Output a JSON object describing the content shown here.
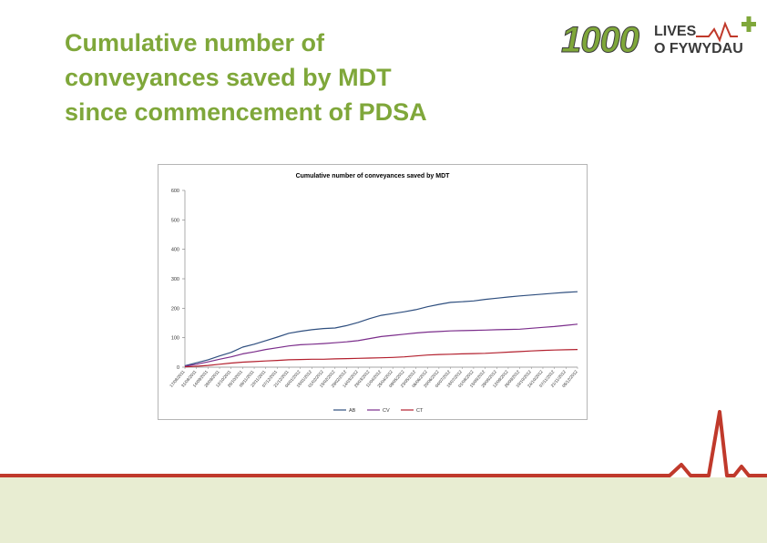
{
  "slide": {
    "title_lines": [
      "Cumulative number of",
      "conveyances saved by MDT",
      "since commencement of PDSA"
    ]
  },
  "logo": {
    "number": "1000",
    "line1": "LIVES",
    "line2": "O FYWYDAU",
    "colors": {
      "green": "#7fa73a",
      "dark": "#3a3a3a",
      "red": "#c0392b"
    }
  },
  "chart_data": {
    "type": "line",
    "title": "Cumulative number of conveyances saved by MDT",
    "ylim": [
      0,
      600
    ],
    "y_ticks": [
      "0",
      "100",
      "200",
      "300",
      "400",
      "500",
      "600"
    ],
    "x": [
      "17/08/2011",
      "31/08/2011",
      "14/09/2011",
      "28/09/2011",
      "12/10/2011",
      "26/10/2011",
      "09/11/2011",
      "23/11/2011",
      "07/12/2011",
      "21/12/2011",
      "04/01/2012",
      "18/01/2012",
      "01/02/2012",
      "15/02/2012",
      "29/02/2012",
      "14/03/2012",
      "28/03/2012",
      "11/04/2012",
      "25/04/2012",
      "09/05/2012",
      "23/05/2012",
      "06/06/2012",
      "20/06/2012",
      "04/07/2012",
      "18/07/2012",
      "01/08/2012",
      "15/08/2012",
      "29/08/2012",
      "12/09/2012",
      "26/09/2012",
      "10/10/2012",
      "24/10/2012",
      "07/11/2012",
      "21/11/2012",
      "05/12/2012"
    ],
    "x_tick_labels": [
      "17/08/2011",
      "31/08/2011",
      "14/09/2011",
      "28/09/2011",
      "12/10/2011",
      "26/10/2011",
      "09/11/2011",
      "23/11/2011",
      "07/12/2011",
      "21/12/2011",
      "04/01/2012",
      "18/01/2012",
      "01/02/2012",
      "15/02/2012",
      "29/02/2012",
      "14/03/2012",
      "28/03/2012",
      "11/04/2012",
      "25/04/2012",
      "09/05/2012",
      "23/05/2012",
      "06/06/2012",
      "20/06/2012",
      "04/07/2012",
      "18/07/2012",
      "01/08/2012",
      "15/08/2012",
      "29/08/2012",
      "12/09/2012",
      "26/09/2012",
      "10/10/2012",
      "24/10/2012",
      "07/11/2012",
      "21/11/2012",
      "05/12/2012"
    ],
    "series": [
      {
        "name": "AB",
        "color": "#2f4f7f",
        "values": [
          5,
          15,
          25,
          38,
          50,
          68,
          78,
          90,
          102,
          115,
          122,
          127,
          131,
          133,
          141,
          152,
          165,
          176,
          182,
          188,
          195,
          205,
          213,
          220,
          222,
          225,
          230,
          234,
          238,
          242,
          245,
          248,
          251,
          254,
          256
        ]
      },
      {
        "name": "CV",
        "color": "#7b2d8b",
        "values": [
          3,
          10,
          18,
          27,
          35,
          45,
          52,
          60,
          66,
          72,
          76,
          78,
          80,
          83,
          86,
          90,
          97,
          104,
          108,
          112,
          116,
          119,
          121,
          123,
          124,
          125,
          126,
          127,
          128,
          129,
          132,
          135,
          138,
          142,
          146
        ]
      },
      {
        "name": "CT",
        "color": "#b3202e",
        "values": [
          1,
          3,
          6,
          10,
          14,
          17,
          19,
          21,
          23,
          25,
          26,
          27,
          27,
          28,
          29,
          30,
          31,
          32,
          33,
          35,
          38,
          41,
          43,
          44,
          45,
          46,
          47,
          49,
          51,
          53,
          55,
          57,
          58,
          59,
          60
        ]
      }
    ],
    "legend_position": "bottom",
    "grid": false
  }
}
